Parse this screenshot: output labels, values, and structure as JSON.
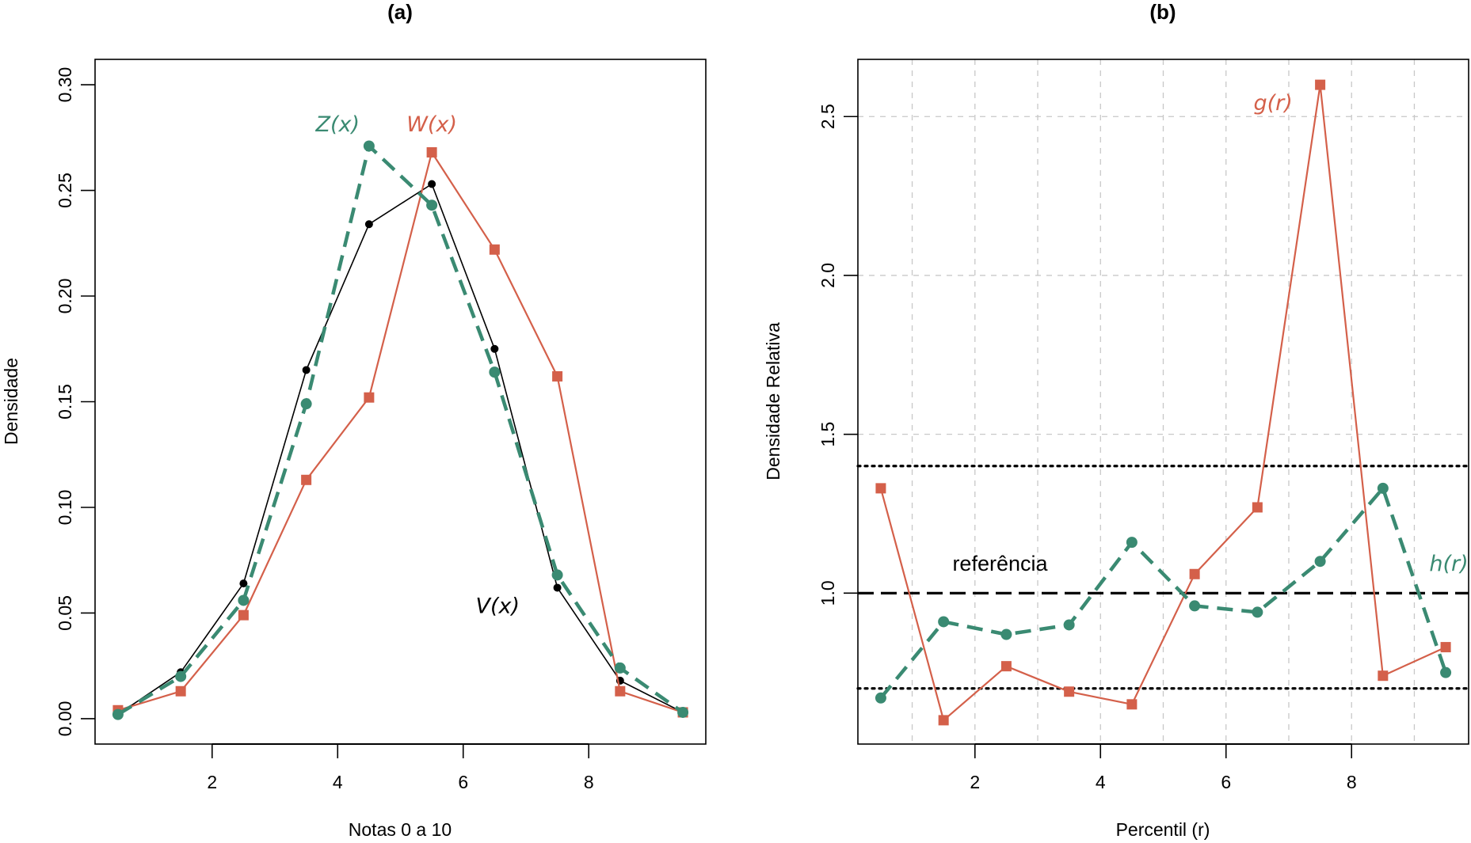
{
  "chart_data": [
    {
      "type": "line",
      "title": "(a)",
      "xlabel": "Notas 0 a 10",
      "ylabel": "Densidade",
      "xlim": [
        0.135,
        9.865
      ],
      "ylim": [
        -0.012,
        0.312
      ],
      "xticks": [
        2,
        4,
        6,
        8
      ],
      "xtick_labels": [
        "2",
        "4",
        "6",
        "8"
      ],
      "yticks": [
        0.0,
        0.05,
        0.1,
        0.15,
        0.2,
        0.25,
        0.3
      ],
      "ytick_labels": [
        "0.00",
        "0.05",
        "0.10",
        "0.15",
        "0.20",
        "0.25",
        "0.30"
      ],
      "grid": false,
      "x": [
        0.5,
        1.5,
        2.5,
        3.5,
        4.5,
        5.5,
        6.5,
        7.5,
        8.5,
        9.5
      ],
      "series": [
        {
          "name": "V(x)",
          "label_main": "V",
          "label_arg": "x",
          "color": "#000000",
          "style": "solid",
          "marker": "circle-small",
          "values": [
            0.002,
            0.022,
            0.064,
            0.165,
            0.234,
            0.253,
            0.175,
            0.062,
            0.018,
            0.003
          ],
          "label_at": [
            6.55,
            0.05
          ]
        },
        {
          "name": "W(x)",
          "label_main": "W",
          "label_arg": "x",
          "color": "#d4604a",
          "style": "solid",
          "marker": "square",
          "values": [
            0.004,
            0.013,
            0.049,
            0.113,
            0.152,
            0.268,
            0.222,
            0.162,
            0.013,
            0.003
          ],
          "label_at": [
            5.5,
            0.278
          ]
        },
        {
          "name": "Z(x)",
          "label_main": "Z",
          "label_arg": "x",
          "color": "#3a8a72",
          "style": "dashed",
          "marker": "circle",
          "values": [
            0.002,
            0.02,
            0.056,
            0.149,
            0.271,
            0.243,
            0.164,
            0.068,
            0.024,
            0.003
          ],
          "label_at": [
            4.0,
            0.278
          ]
        }
      ]
    },
    {
      "type": "line",
      "title": "(b)",
      "xlabel": "Percentil (r)",
      "ylabel": "Densidade Relativa",
      "xlim": [
        0.135,
        9.865
      ],
      "ylim": [
        0.525,
        2.68
      ],
      "xticks": [
        2,
        4,
        6,
        8
      ],
      "xtick_labels": [
        "2",
        "4",
        "6",
        "8"
      ],
      "yticks": [
        1.0,
        1.5,
        2.0,
        2.5
      ],
      "ytick_labels": [
        "1.0",
        "1.5",
        "2.0",
        "2.5"
      ],
      "grid": true,
      "grid_x": [
        1,
        2,
        3,
        4,
        5,
        6,
        7,
        8,
        9
      ],
      "grid_y": [
        1.5,
        2.0,
        2.5
      ],
      "x": [
        0.5,
        1.5,
        2.5,
        3.5,
        4.5,
        5.5,
        6.5,
        7.5,
        8.5,
        9.5
      ],
      "series": [
        {
          "name": "g(r)",
          "label_main": "g",
          "label_arg": "r",
          "color": "#d4604a",
          "style": "solid",
          "marker": "square",
          "values": [
            1.33,
            0.6,
            0.77,
            0.69,
            0.65,
            1.06,
            1.27,
            2.6,
            0.74,
            0.83
          ],
          "label_at": [
            6.75,
            2.52
          ]
        },
        {
          "name": "h(r)",
          "label_main": "h",
          "label_arg": "r",
          "color": "#3a8a72",
          "style": "dashed",
          "marker": "circle",
          "values": [
            0.67,
            0.91,
            0.87,
            0.9,
            1.16,
            0.96,
            0.94,
            1.1,
            1.33,
            0.75
          ],
          "label_at": [
            9.55,
            1.07
          ]
        }
      ],
      "reference_lines": [
        {
          "y": 1.0,
          "style": "long-dash",
          "label": "referência",
          "label_at": [
            2.4,
            1.07
          ]
        },
        {
          "y": 1.4,
          "style": "dotted"
        },
        {
          "y": 0.7,
          "style": "dotted"
        }
      ]
    }
  ]
}
